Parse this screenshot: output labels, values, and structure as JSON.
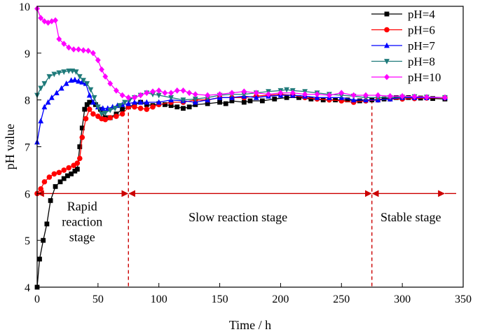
{
  "chart_data": {
    "type": "line",
    "title": "",
    "xlabel": "Time / h",
    "ylabel": "pH value",
    "xlim": [
      0,
      350
    ],
    "ylim": [
      4,
      10
    ],
    "xticks": [
      0,
      50,
      100,
      150,
      200,
      250,
      300,
      350
    ],
    "yticks": [
      4,
      5,
      6,
      7,
      8,
      9,
      10
    ],
    "legend_position": "top-right",
    "series": [
      {
        "name": "pH=4",
        "color": "#000000",
        "marker": "square",
        "x": [
          0,
          2,
          5,
          8,
          11,
          15,
          19,
          22,
          25,
          28,
          31,
          33,
          35,
          37,
          39,
          41,
          43,
          45,
          48,
          52,
          56,
          60,
          65,
          70,
          75,
          80,
          85,
          90,
          95,
          100,
          105,
          110,
          115,
          120,
          125,
          130,
          140,
          150,
          155,
          160,
          170,
          175,
          185,
          195,
          205,
          215,
          225,
          235,
          245,
          255,
          265,
          275,
          285,
          295,
          305,
          315,
          325,
          335
        ],
        "y": [
          4.0,
          4.6,
          5.0,
          5.35,
          5.85,
          6.15,
          6.25,
          6.32,
          6.38,
          6.42,
          6.48,
          6.52,
          7.0,
          7.4,
          7.8,
          7.9,
          7.95,
          7.95,
          7.9,
          7.8,
          7.62,
          7.62,
          7.7,
          7.8,
          7.85,
          7.9,
          7.95,
          7.9,
          7.88,
          7.92,
          7.9,
          7.88,
          7.85,
          7.82,
          7.85,
          7.9,
          7.92,
          7.95,
          7.92,
          7.98,
          7.95,
          7.98,
          7.98,
          8.02,
          8.05,
          8.05,
          8.02,
          8.0,
          8.0,
          8.0,
          7.98,
          8.0,
          8.02,
          8.05,
          8.05,
          8.04,
          8.03,
          8.02
        ]
      },
      {
        "name": "pH=6",
        "color": "#ff0000",
        "marker": "circle",
        "x": [
          0,
          3,
          6,
          10,
          14,
          18,
          22,
          26,
          30,
          33,
          35,
          37,
          40,
          43,
          46,
          50,
          53,
          56,
          60,
          65,
          70,
          75,
          80,
          85,
          90,
          95,
          100,
          110,
          120,
          130,
          140,
          150,
          160,
          170,
          180,
          190,
          200,
          210,
          220,
          230,
          240,
          250,
          260,
          270,
          280,
          290,
          300,
          310,
          320,
          335
        ],
        "y": [
          6.0,
          6.1,
          6.25,
          6.35,
          6.42,
          6.45,
          6.5,
          6.55,
          6.6,
          6.65,
          6.75,
          7.2,
          7.6,
          7.8,
          7.7,
          7.65,
          7.6,
          7.58,
          7.62,
          7.65,
          7.7,
          7.85,
          7.85,
          7.82,
          7.8,
          7.85,
          7.9,
          7.95,
          7.95,
          8.0,
          8.0,
          8.05,
          8.05,
          8.05,
          8.08,
          8.1,
          8.12,
          8.1,
          8.05,
          8.02,
          8.0,
          7.98,
          7.95,
          7.98,
          8.0,
          8.02,
          8.02,
          8.03,
          8.04,
          8.05
        ]
      },
      {
        "name": "pH=7",
        "color": "#0000ff",
        "marker": "triangle-up",
        "x": [
          0,
          3,
          6,
          9,
          12,
          16,
          20,
          24,
          28,
          31,
          34,
          37,
          40,
          43,
          46,
          50,
          54,
          58,
          62,
          66,
          70,
          75,
          80,
          85,
          90,
          100,
          110,
          120,
          130,
          140,
          150,
          160,
          170,
          180,
          190,
          200,
          210,
          220,
          230,
          240,
          250,
          260,
          270,
          280,
          290,
          300,
          310,
          320,
          335
        ],
        "y": [
          7.1,
          7.55,
          7.85,
          7.95,
          8.05,
          8.15,
          8.25,
          8.35,
          8.42,
          8.43,
          8.4,
          8.38,
          8.35,
          8.1,
          7.95,
          7.85,
          7.82,
          7.82,
          7.85,
          7.88,
          7.9,
          7.92,
          7.95,
          7.95,
          7.95,
          7.95,
          8.0,
          7.98,
          7.95,
          8.0,
          8.05,
          8.05,
          8.08,
          8.05,
          8.08,
          8.1,
          8.1,
          8.08,
          8.05,
          8.05,
          8.05,
          8.0,
          8.0,
          8.0,
          8.02,
          8.05,
          8.05,
          8.05,
          8.05
        ]
      },
      {
        "name": "pH=8",
        "color": "#1f7a7a",
        "marker": "triangle-down",
        "x": [
          0,
          3,
          6,
          10,
          14,
          18,
          22,
          26,
          29,
          32,
          35,
          38,
          41,
          44,
          47,
          50,
          53,
          56,
          60,
          64,
          68,
          72,
          76,
          80,
          85,
          90,
          95,
          100,
          110,
          120,
          130,
          140,
          150,
          160,
          170,
          180,
          190,
          200,
          205,
          210,
          220,
          230,
          240,
          250,
          260,
          270,
          280,
          290,
          300,
          310,
          320,
          335
        ],
        "y": [
          8.1,
          8.25,
          8.35,
          8.5,
          8.55,
          8.58,
          8.6,
          8.62,
          8.62,
          8.6,
          8.5,
          8.42,
          8.35,
          8.22,
          8.05,
          7.85,
          7.7,
          7.72,
          7.78,
          7.82,
          7.88,
          7.95,
          8.0,
          8.05,
          8.1,
          8.15,
          8.12,
          8.1,
          8.05,
          8.0,
          8.02,
          8.05,
          8.1,
          8.12,
          8.12,
          8.15,
          8.18,
          8.2,
          8.22,
          8.2,
          8.18,
          8.15,
          8.12,
          8.1,
          8.08,
          8.05,
          8.05,
          8.05,
          8.06,
          8.07,
          8.06,
          8.05
        ]
      },
      {
        "name": "pH=10",
        "color": "#ff00ff",
        "marker": "diamond",
        "x": [
          0,
          3,
          6,
          9,
          12,
          15,
          18,
          22,
          26,
          30,
          34,
          38,
          42,
          46,
          50,
          53,
          56,
          60,
          65,
          70,
          75,
          80,
          85,
          90,
          95,
          100,
          105,
          110,
          115,
          120,
          125,
          130,
          140,
          150,
          160,
          170,
          180,
          190,
          200,
          210,
          220,
          230,
          240,
          250,
          260,
          270,
          280,
          290,
          300,
          310,
          320,
          335
        ],
        "y": [
          9.95,
          9.75,
          9.68,
          9.65,
          9.68,
          9.7,
          9.3,
          9.2,
          9.12,
          9.08,
          9.08,
          9.06,
          9.05,
          9.0,
          8.85,
          8.65,
          8.5,
          8.35,
          8.2,
          8.1,
          8.05,
          8.05,
          8.1,
          8.15,
          8.18,
          8.2,
          8.15,
          8.15,
          8.2,
          8.2,
          8.15,
          8.12,
          8.1,
          8.12,
          8.15,
          8.18,
          8.15,
          8.12,
          8.15,
          8.15,
          8.12,
          8.12,
          8.1,
          8.15,
          8.1,
          8.1,
          8.1,
          8.08,
          8.08,
          8.07,
          8.06,
          8.05
        ]
      }
    ],
    "reference_lines": {
      "color": "#cc0000",
      "vertical_x": [
        75,
        275
      ],
      "horizontal_y": 6,
      "arrow_segments": [
        [
          0,
          75
        ],
        [
          75,
          275
        ],
        [
          275,
          335
        ]
      ]
    },
    "annotations": [
      {
        "id": "rapid",
        "lines": [
          "Rapid",
          "reaction",
          "stage"
        ],
        "x": 37,
        "y": 5.4
      },
      {
        "id": "slow",
        "lines": [
          "Slow reaction stage"
        ],
        "x": 165,
        "y": 5.5
      },
      {
        "id": "stable",
        "lines": [
          "Stable stage"
        ],
        "x": 307,
        "y": 5.5
      }
    ]
  }
}
